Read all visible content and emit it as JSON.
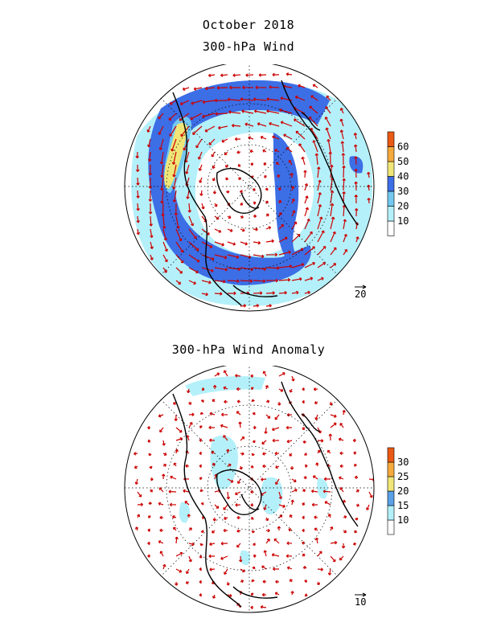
{
  "header": {
    "date_title": "October 2018",
    "panel1_title": "300-hPa Wind",
    "panel2_title": "300-hPa Wind Anomaly"
  },
  "panel1": {
    "colorbar": {
      "labels": [
        "10",
        "20",
        "30",
        "40",
        "50",
        "60"
      ],
      "colors": [
        "#ffffff",
        "#b4f0fa",
        "#73c8f0",
        "#3c6ee6",
        "#f0e678",
        "#f5aa3c",
        "#eb5a14"
      ]
    },
    "reference_vector": "20"
  },
  "panel2": {
    "colorbar": {
      "labels": [
        "10",
        "15",
        "20",
        "25",
        "30"
      ],
      "colors": [
        "#ffffff",
        "#b4f0fa",
        "#5aa0e6",
        "#f0e678",
        "#f5aa3c",
        "#eb5a14"
      ]
    },
    "reference_vector": "10"
  },
  "style": {
    "arrow_color": "#cc0000",
    "coast_color": "#000000"
  }
}
